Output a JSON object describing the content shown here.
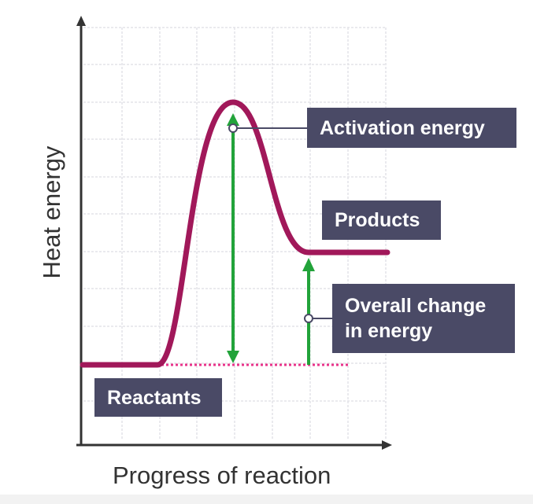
{
  "diagram": {
    "x_axis_title": "Progress of reaction",
    "y_axis_title": "Heat energy",
    "labels": {
      "activation": "Activation energy",
      "products": "Products",
      "overall_line1": "Overall change",
      "overall_line2": "in energy",
      "reactants": "Reactants"
    },
    "colors": {
      "curve": "#a1185a",
      "arrow": "#22a33a",
      "dotted": "#e8338a",
      "label_bg": "#4a4a66",
      "grid": "#e3e3e8",
      "axis": "#333333"
    }
  }
}
